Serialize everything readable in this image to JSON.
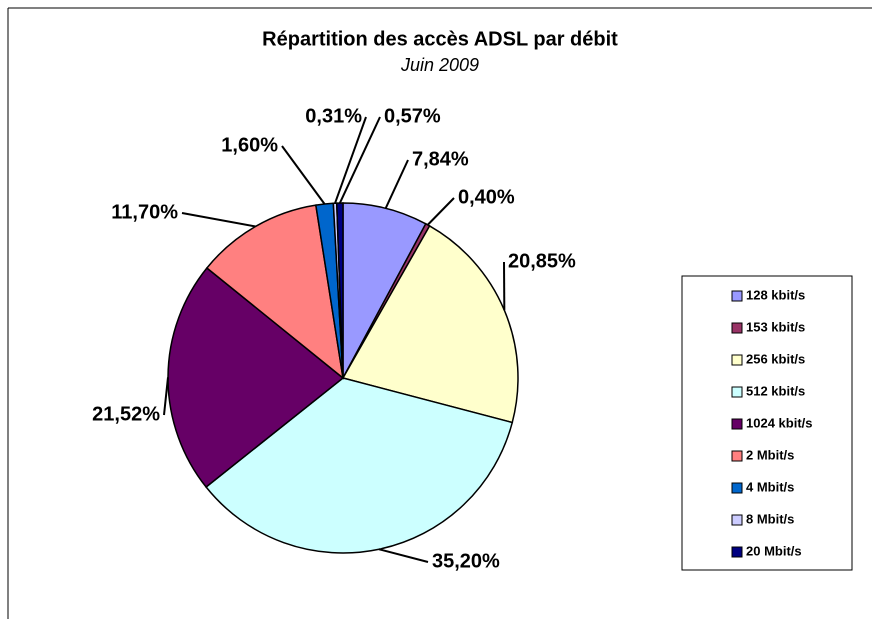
{
  "chart_data": {
    "type": "pie",
    "title": "Répartition des accès ADSL par débit",
    "subtitle": "Juin 2009",
    "categories": [
      "128 kbit/s",
      "153 kbit/s",
      "256 kbit/s",
      "512 kbit/s",
      "1024 kbit/s",
      "2 Mbit/s",
      "4 Mbit/s",
      "8 Mbit/s",
      "20 Mbit/s"
    ],
    "values": [
      7.84,
      0.4,
      20.85,
      35.2,
      21.52,
      11.7,
      1.6,
      0.31,
      0.57
    ],
    "value_labels": [
      "7,84%",
      "0,40%",
      "20,85%",
      "35,20%",
      "21,52%",
      "11,70%",
      "1,60%",
      "0,31%",
      "0,57%"
    ],
    "colors": [
      "#9999ff",
      "#993366",
      "#ffffcc",
      "#ccffff",
      "#660066",
      "#ff8080",
      "#0066cc",
      "#ccccff",
      "#000080"
    ],
    "legend": "right"
  }
}
